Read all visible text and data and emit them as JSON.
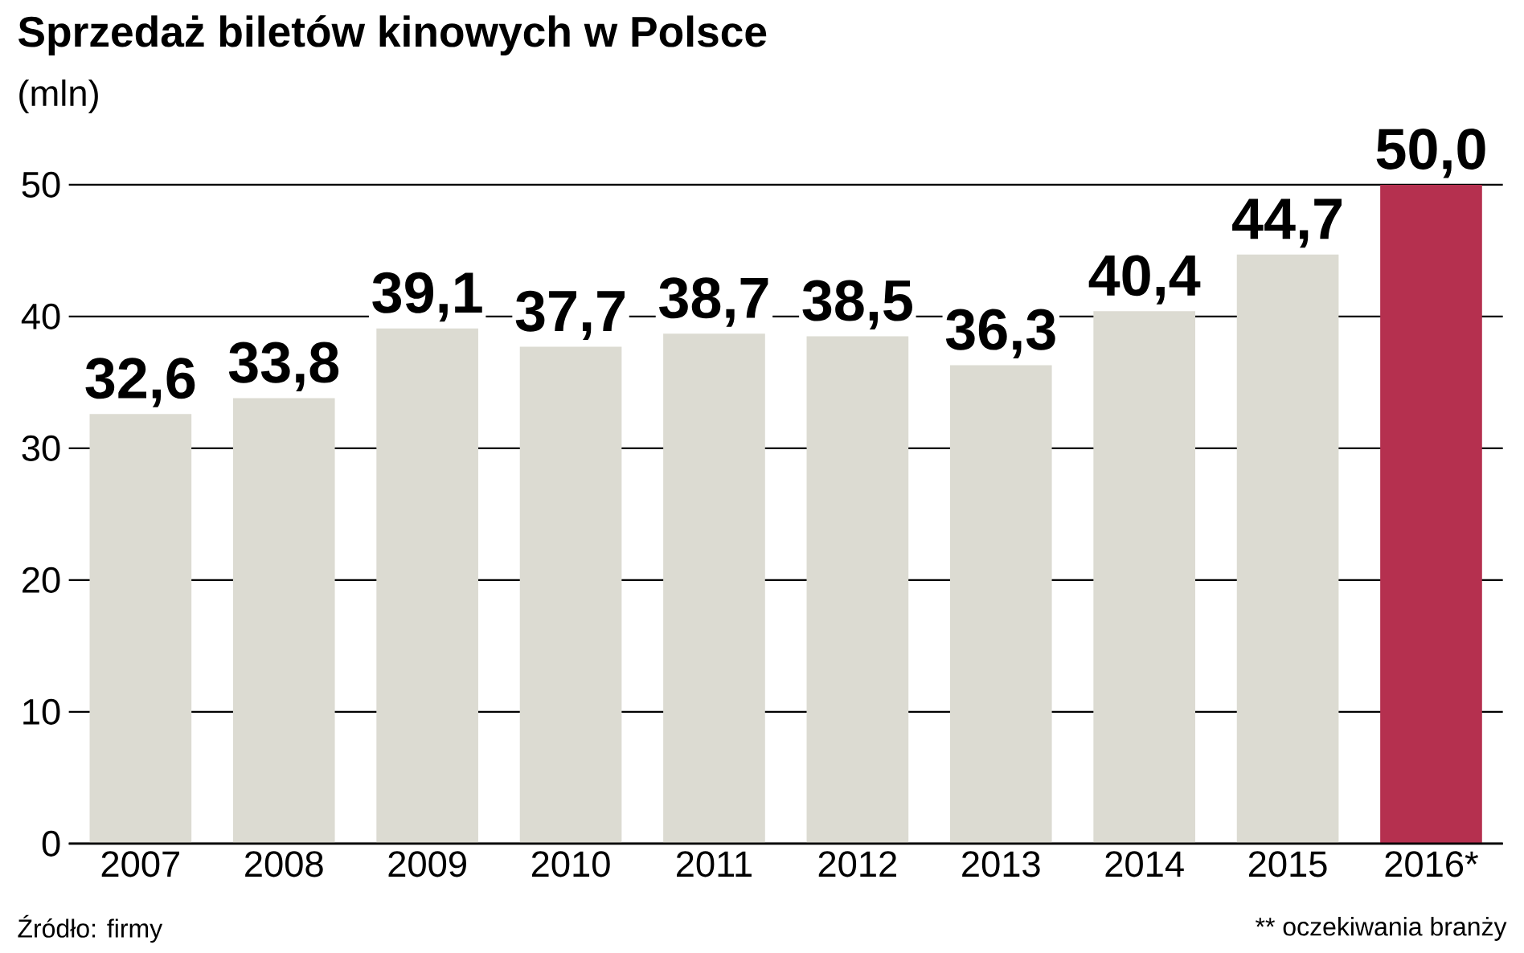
{
  "chart_data": {
    "type": "bar",
    "title": "Sprzedaż biletów kinowych w Polsce",
    "subtitle": "(mln)",
    "categories": [
      "2007",
      "2008",
      "2009",
      "2010",
      "2011",
      "2012",
      "2013",
      "2014",
      "2015",
      "2016*"
    ],
    "values": [
      32.6,
      33.8,
      39.1,
      37.7,
      38.7,
      38.5,
      36.3,
      40.4,
      44.7,
      50.0
    ],
    "colors": [
      "#dcdbd2",
      "#dcdbd2",
      "#dcdbd2",
      "#dcdbd2",
      "#dcdbd2",
      "#dcdbd2",
      "#dcdbd2",
      "#dcdbd2",
      "#dcdbd2",
      "#b5304f"
    ],
    "value_labels": [
      "32,6",
      "33,8",
      "39,1",
      "37,7",
      "38,7",
      "38,5",
      "36,3",
      "40,4",
      "44,7",
      "50,0"
    ],
    "ylim": [
      0,
      50
    ],
    "yticks": [
      0,
      10,
      20,
      30,
      40,
      50
    ],
    "grid": "y",
    "annotations": [
      "Źródło: firmy",
      "** oczekiwania branży"
    ]
  }
}
